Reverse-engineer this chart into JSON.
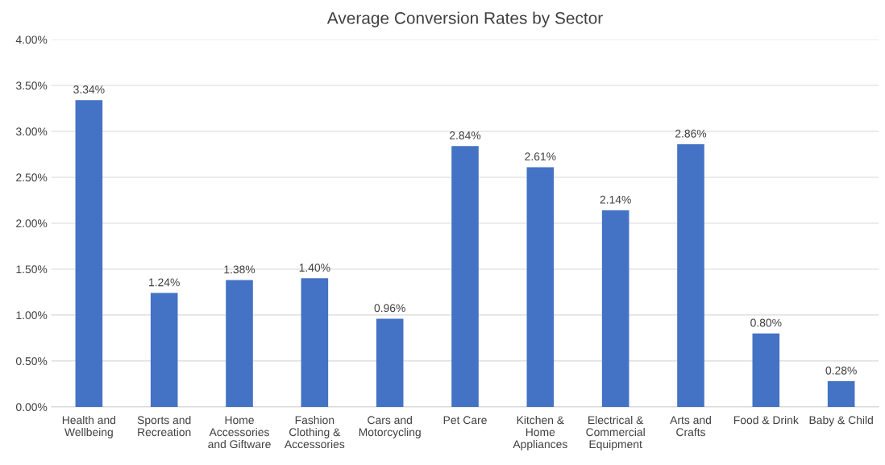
{
  "chart_data": {
    "type": "bar",
    "title": "Average Conversion Rates by Sector",
    "categories": [
      "Health and\nWellbeing",
      "Sports and\nRecreation",
      "Home\nAccessories\nand Giftware",
      "Fashion\nClothing &\nAccessories",
      "Cars and\nMotorcycling",
      "Pet Care",
      "Kitchen &\nHome\nAppliances",
      "Electrical &\nCommercial\nEquipment",
      "Arts and\nCrafts",
      "Food & Drink",
      "Baby & Child"
    ],
    "values": [
      3.34,
      1.24,
      1.38,
      1.4,
      0.96,
      2.84,
      2.61,
      2.14,
      2.86,
      0.8,
      0.28
    ],
    "value_labels": [
      "3.34%",
      "1.24%",
      "1.38%",
      "1.40%",
      "0.96%",
      "2.84%",
      "2.61%",
      "2.14%",
      "2.86%",
      "0.80%",
      "0.28%"
    ],
    "color": "#4472c4",
    "ylim": [
      0,
      4
    ],
    "yticks": [
      {
        "value": 0,
        "label": "0.00%"
      },
      {
        "value": 0.5,
        "label": "0.50%"
      },
      {
        "value": 1,
        "label": "1.00%"
      },
      {
        "value": 1.5,
        "label": "1.50%"
      },
      {
        "value": 2,
        "label": "2.00%"
      },
      {
        "value": 2.5,
        "label": "2.50%"
      },
      {
        "value": 3,
        "label": "3.00%"
      },
      {
        "value": 3.5,
        "label": "3.50%"
      },
      {
        "value": 4,
        "label": "4.00%"
      }
    ],
    "grid": "y"
  }
}
